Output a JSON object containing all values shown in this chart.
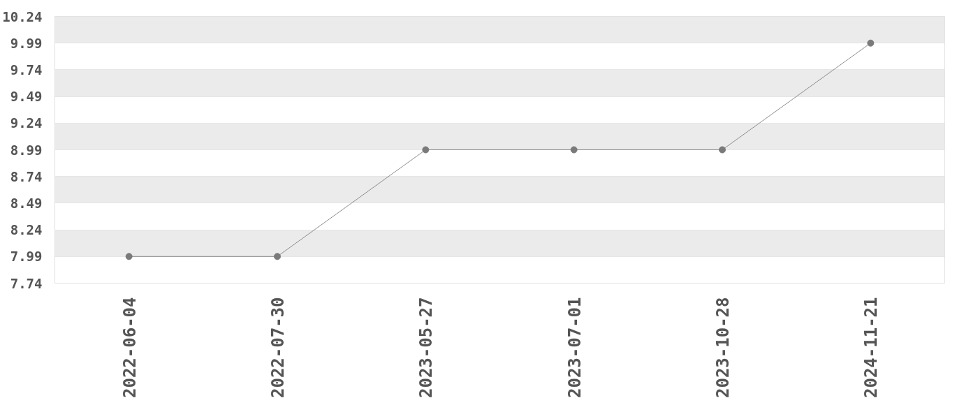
{
  "chart_data": {
    "type": "line",
    "categories": [
      "2022-06-04",
      "2022-07-30",
      "2023-05-27",
      "2023-07-01",
      "2023-10-28",
      "2024-11-21"
    ],
    "series": [
      {
        "color": "#7a7a7a",
        "values": [
          7.99,
          7.99,
          8.99,
          8.99,
          8.99,
          9.99
        ]
      }
    ],
    "ylim": [
      7.74,
      10.24
    ],
    "yticks": [
      7.74,
      7.99,
      8.24,
      8.49,
      8.74,
      8.99,
      9.24,
      9.49,
      9.74,
      9.99,
      10.24
    ],
    "grid": "y",
    "marker": "circle",
    "line_style": "solid"
  }
}
